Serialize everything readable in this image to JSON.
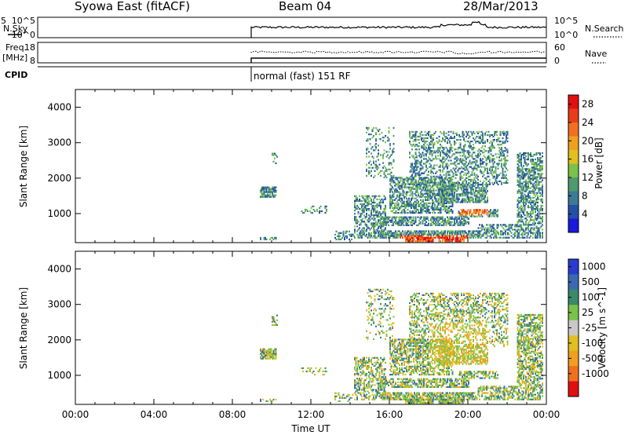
{
  "header": {
    "title": "Syowa East (fitACF)",
    "beam": "Beam 04",
    "date": "28/Mar/2013"
  },
  "top_panels": {
    "nsky_label": "N.Sky",
    "nsky_ticks": [
      "10^5",
      "10^0"
    ],
    "nsearch_label": "N.Search",
    "nsearch_ticks": [
      "10^5",
      "10^0"
    ],
    "freq_label": "Freq.",
    "freq_unit": "[MHz]",
    "freq_ticks": [
      "18",
      "8"
    ],
    "nave_label": "Nave",
    "nave_ticks": [
      "60",
      "0"
    ],
    "cpid_label": "CPID",
    "cpid_text": "normal (fast) 151 RF"
  },
  "colors": {
    "power_scale": [
      "#1a1adc",
      "#2450a8",
      "#3c7a96",
      "#4f9a6e",
      "#7ac24a",
      "#e0c020",
      "#f0a020",
      "#f07020",
      "#e83c1c",
      "#e01010"
    ],
    "velocity_scale": [
      "#2a3cd0",
      "#3c6ab0",
      "#3a8a6a",
      "#7ac24a",
      "#c8c8c8",
      "#e0c020",
      "#f0a020",
      "#f07020",
      "#e01010"
    ]
  },
  "chart_data": [
    {
      "type": "heatmap",
      "name": "Power",
      "xlabel": "",
      "ylabel": "Slant Range [km]",
      "ylim": [
        180,
        4500
      ],
      "yticks": [
        1000,
        2000,
        3000,
        4000
      ],
      "xlim": [
        0,
        24
      ],
      "colorbar_label": "Power [dB]",
      "colorbar_ticks": [
        4,
        8,
        12,
        16,
        20,
        24,
        28
      ],
      "colorbar_range": [
        0,
        30
      ]
    },
    {
      "type": "heatmap",
      "name": "Velocity",
      "xlabel": "Time UT",
      "ylabel": "Slant Range [km]",
      "ylim": [
        180,
        4500
      ],
      "yticks": [
        1000,
        2000,
        3000,
        4000
      ],
      "xlim": [
        0,
        24
      ],
      "xticks": [
        "00:00",
        "04:00",
        "08:00",
        "12:00",
        "16:00",
        "20:00",
        "00:00"
      ],
      "colorbar_label": "Velocity [m s^-1]",
      "colorbar_ticks": [
        "1000",
        "500",
        "100",
        "25",
        "-25",
        "-100",
        "-500",
        "-1000"
      ]
    }
  ]
}
